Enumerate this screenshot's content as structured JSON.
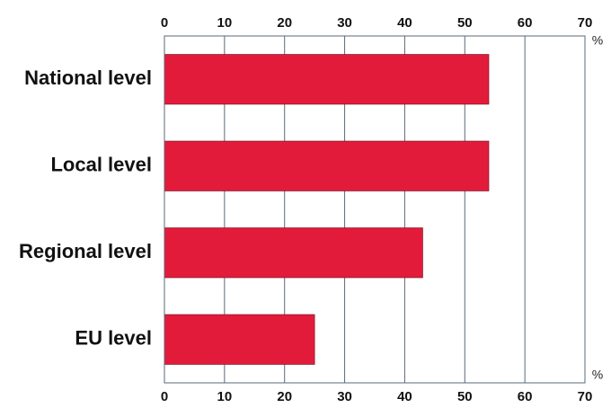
{
  "chart_data": {
    "type": "bar",
    "orientation": "horizontal",
    "categories": [
      "National level",
      "Local level",
      "Regional level",
      "EU level"
    ],
    "values": [
      54,
      54,
      43,
      25
    ],
    "unit": "%",
    "xlim": [
      0,
      70
    ],
    "xticks": [
      0,
      10,
      20,
      30,
      40,
      50,
      60,
      70
    ],
    "tick_labels_top": true,
    "tick_labels_bottom": true,
    "grid": "vertical",
    "bar_color": "#e31b3b",
    "grid_color": "#5a6a7a"
  }
}
